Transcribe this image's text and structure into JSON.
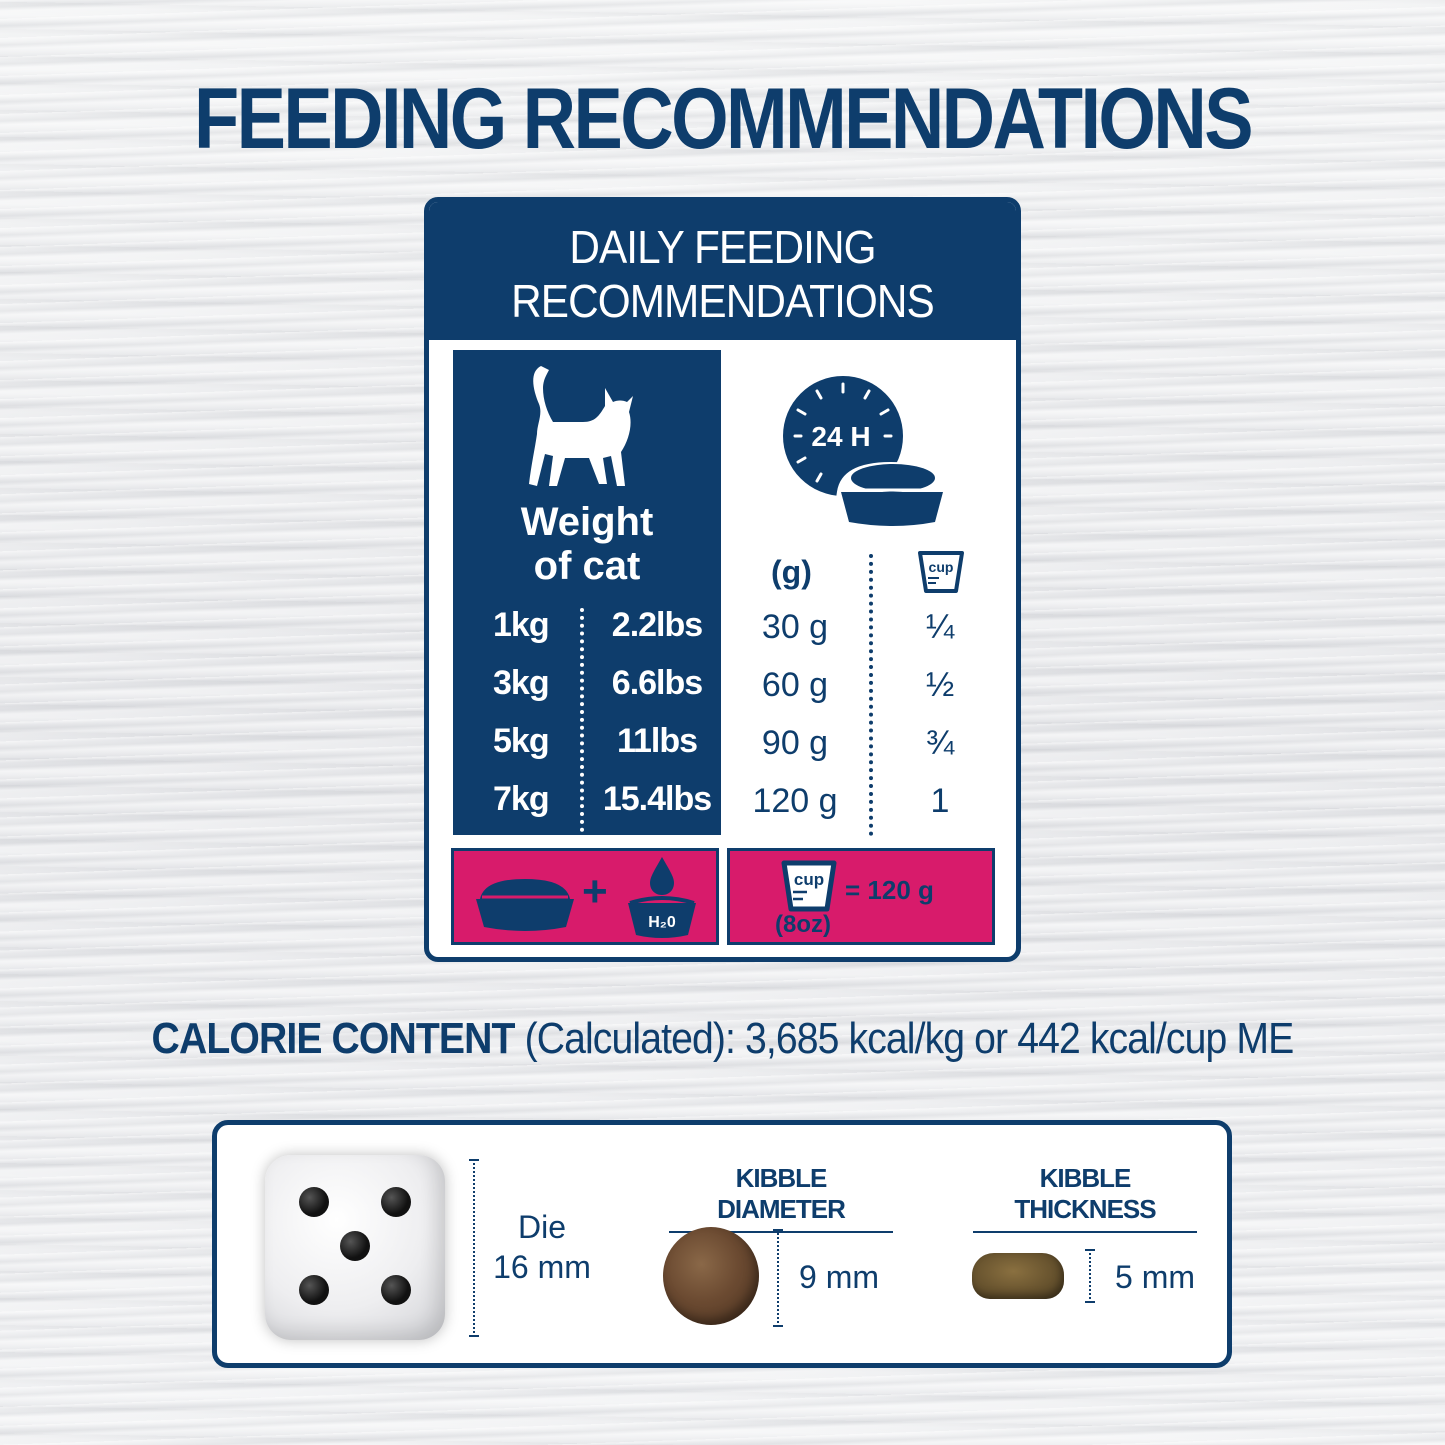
{
  "title": "FEEDING RECOMMENDATIONS",
  "card": {
    "header_line1": "DAILY FEEDING",
    "header_line2": "RECOMMENDATIONS",
    "weight_label_line1": "Weight",
    "weight_label_line2": "of cat",
    "clock_text": "24 H",
    "grams_header": "(g)",
    "cup_icon_text": "cup",
    "rows": [
      {
        "kg": "1kg",
        "lbs": "2.2lbs",
        "grams": "30 g",
        "cup": "¼"
      },
      {
        "kg": "3kg",
        "lbs": "6.6lbs",
        "grams": "60 g",
        "cup": "½"
      },
      {
        "kg": "5kg",
        "lbs": "11lbs",
        "grams": "90 g",
        "cup": "¾"
      },
      {
        "kg": "7kg",
        "lbs": "15.4lbs",
        "grams": "120 g",
        "cup": "1"
      }
    ],
    "water_icon_text": "H₂0",
    "cup_equals": "= 120 g",
    "cup_oz": "(8oz)"
  },
  "calorie": {
    "label": "CALORIE CONTENT",
    "text": " (Calculated): 3,685 kcal/kg or 442 kcal/cup ME"
  },
  "kibble": {
    "die_label_line1": "Die",
    "die_label_line2": "16 mm",
    "diameter_header": "KIBBLE DIAMETER",
    "diameter_value": "9 mm",
    "thickness_header": "KIBBLE THICKNESS",
    "thickness_value": "5 mm"
  },
  "colors": {
    "navy": "#0e3d6c",
    "pink": "#d81b6b"
  }
}
